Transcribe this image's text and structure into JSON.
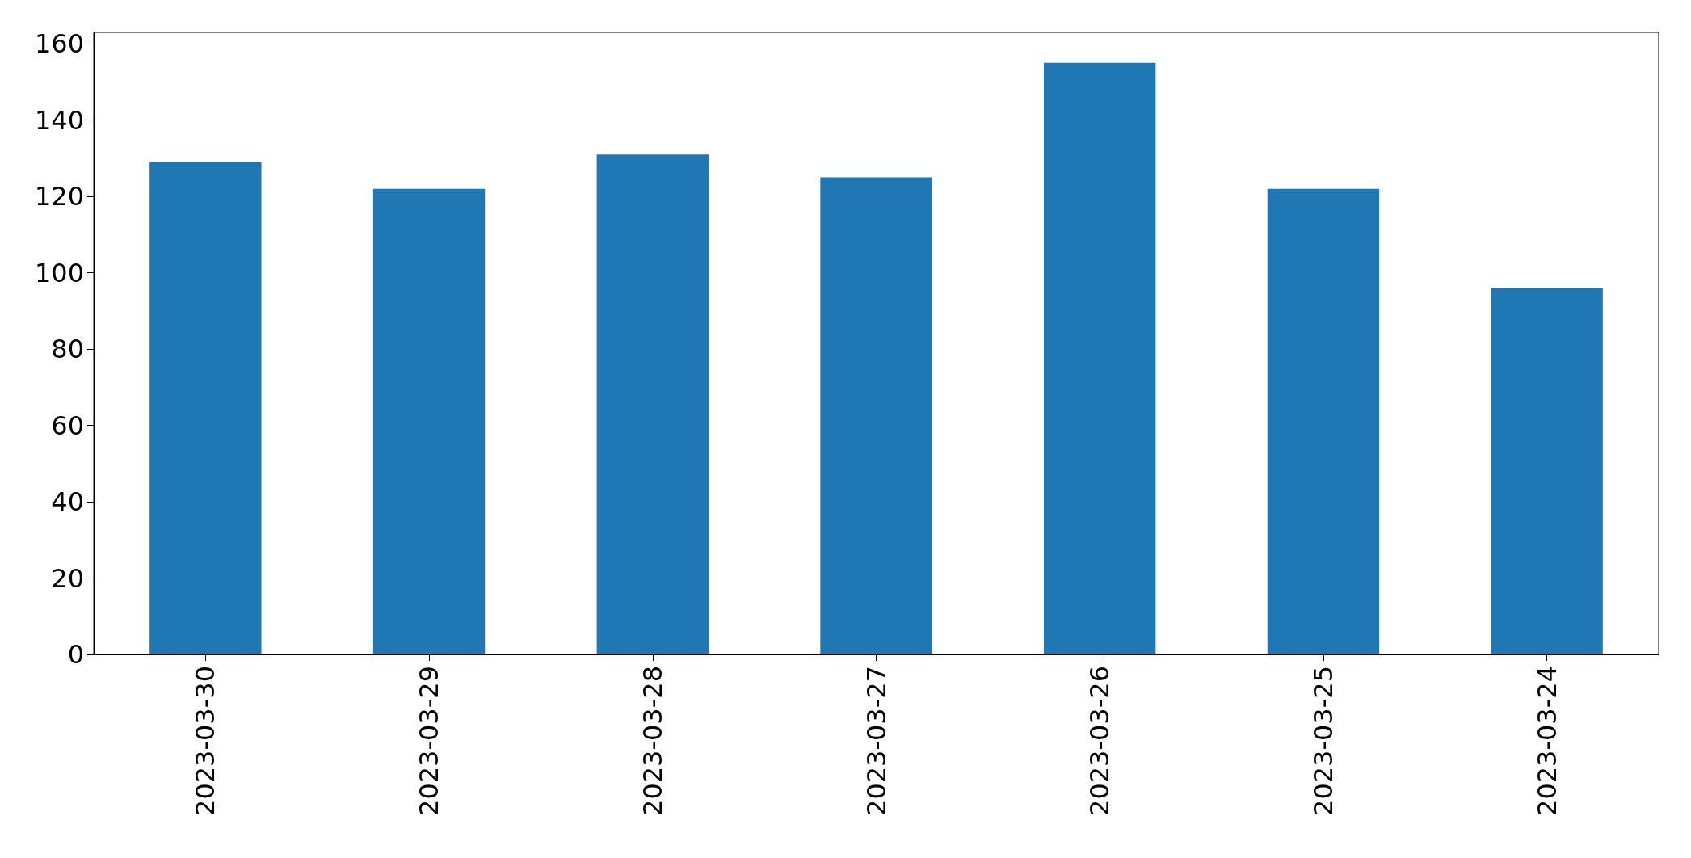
{
  "chart_data": {
    "type": "bar",
    "categories": [
      "2023-03-30",
      "2023-03-29",
      "2023-03-28",
      "2023-03-27",
      "2023-03-26",
      "2023-03-25",
      "2023-03-24"
    ],
    "values": [
      129,
      122,
      131,
      125,
      155,
      122,
      96
    ],
    "color": "#1f77b4",
    "ylim": [
      0,
      163
    ],
    "yticks": [
      0,
      20,
      40,
      60,
      80,
      100,
      120,
      140,
      160
    ],
    "grid": false
  }
}
